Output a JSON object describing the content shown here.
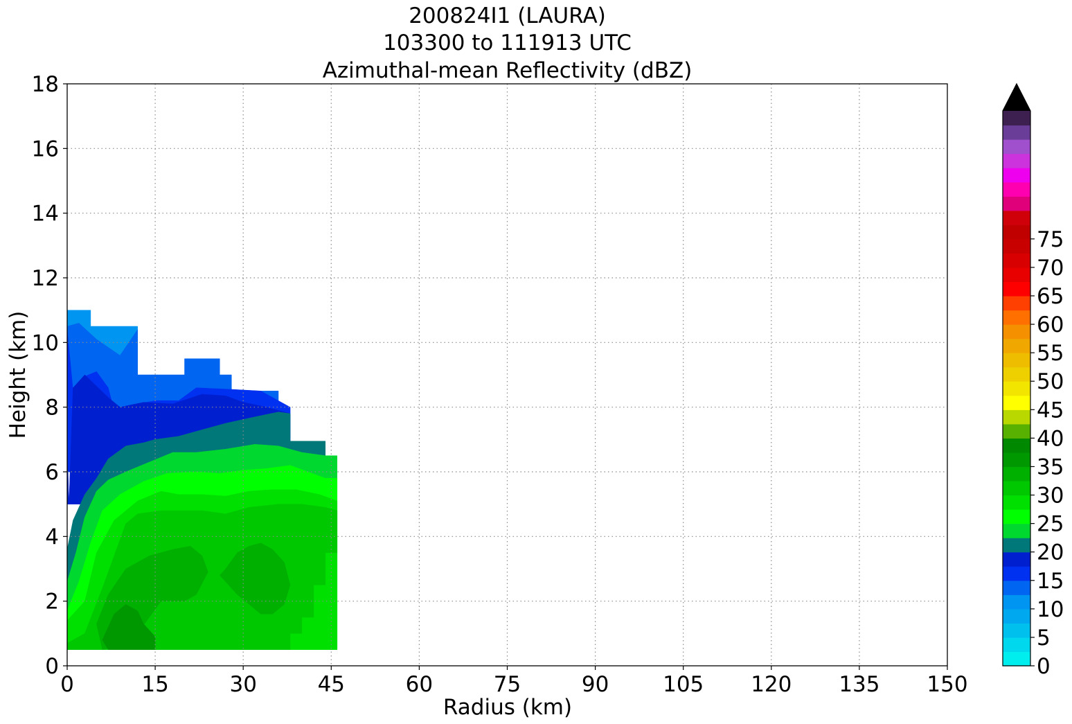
{
  "chart_data": {
    "type": "heatmap",
    "title": [
      "200824I1 (LAURA)",
      "103300 to 111913 UTC",
      "Azimuthal-mean Reflectivity (dBZ)"
    ],
    "xlabel": "Radius (km)",
    "ylabel": "Height (km)",
    "xlim": [
      0,
      150
    ],
    "ylim": [
      0,
      18
    ],
    "xticks": [
      0,
      15,
      30,
      45,
      60,
      75,
      90,
      105,
      120,
      135,
      150
    ],
    "yticks": [
      0,
      2,
      4,
      6,
      8,
      10,
      12,
      14,
      16,
      18
    ],
    "grid": true,
    "colorbar": {
      "ticks": [
        0,
        5,
        10,
        15,
        20,
        25,
        30,
        35,
        40,
        45,
        50,
        55,
        60,
        65,
        70,
        75
      ],
      "level_step": 2.5,
      "extend": "max",
      "colors": [
        "#00eeee",
        "#00d8ee",
        "#00c0ee",
        "#00a8f0",
        "#0095f0",
        "#0065f0",
        "#0030f0",
        "#0020d0",
        "#00787a",
        "#00d830",
        "#00ff00",
        "#00e000",
        "#00c800",
        "#00b000",
        "#009800",
        "#008800",
        "#58b000",
        "#b8d800",
        "#ffff00",
        "#f2e600",
        "#eed000",
        "#eebd00",
        "#f0a800",
        "#f59000",
        "#ff7000",
        "#ff4000",
        "#ff0000",
        "#e80000",
        "#d80000",
        "#c80000",
        "#c00000",
        "#d0000a",
        "#e0007a",
        "#ff00b0",
        "#ee00ee",
        "#cc33dd",
        "#a050cc",
        "#6a3e98",
        "#3e2050"
      ],
      "over_color": "#000000"
    },
    "regions": [
      {
        "level": "5 to 7.5",
        "color": "#0095f0",
        "r": [
          0,
          4,
          4,
          12,
          12,
          0
        ],
        "z": [
          11,
          11,
          10.5,
          10.5,
          9,
          9
        ]
      },
      {
        "level": "7.5 to 10",
        "color": "#0065f0",
        "r": [
          0,
          2,
          5,
          9,
          12,
          12,
          16,
          20,
          20,
          26,
          26,
          28,
          28,
          36,
          36,
          38,
          38,
          0
        ],
        "z": [
          10.5,
          10.6,
          10.1,
          9.6,
          10.4,
          9,
          9,
          9,
          9.5,
          9.5,
          9,
          9,
          8.5,
          8.5,
          8,
          8,
          6,
          6
        ]
      },
      {
        "level": "10 to 12.5",
        "color": "#0030f0",
        "r": [
          0,
          1,
          3,
          5,
          7,
          8,
          10,
          12,
          15,
          19,
          22,
          28,
          33,
          38,
          38,
          0
        ],
        "z": [
          10.4,
          8.5,
          8.95,
          9.1,
          8.6,
          7.9,
          7.8,
          8.1,
          8.2,
          8.2,
          8.6,
          8.55,
          8.5,
          8,
          6,
          6
        ]
      },
      {
        "level": "12.5 to 15",
        "color": "#0020d0",
        "r": [
          0,
          0.3,
          1,
          3,
          7,
          9,
          13,
          18,
          23,
          27,
          30,
          34,
          38,
          38,
          0
        ],
        "z": [
          7,
          5,
          8.6,
          9.0,
          8.3,
          8.0,
          8.15,
          8.1,
          8.4,
          8.35,
          8.15,
          8.0,
          7.8,
          5,
          5
        ]
      },
      {
        "level": "15 to 17.5",
        "color": "#00787a",
        "r": [
          0,
          1,
          3,
          5,
          7,
          10,
          13,
          15,
          19,
          23,
          27,
          32,
          36,
          38,
          38,
          44,
          44,
          0
        ],
        "z": [
          3.6,
          4.5,
          5.3,
          5.8,
          6.4,
          6.8,
          6.9,
          7.0,
          7.1,
          7.3,
          7.5,
          7.7,
          7.85,
          7.8,
          6.95,
          6.95,
          0.5,
          0.5
        ]
      },
      {
        "level": "17.5 to 20",
        "color": "#00d830",
        "r": [
          0,
          1.5,
          3,
          5,
          7,
          10,
          14,
          18,
          22,
          27,
          32,
          36,
          40,
          44,
          46,
          46,
          0
        ],
        "z": [
          2.6,
          3.5,
          4.6,
          5.4,
          5.75,
          6.0,
          6.3,
          6.6,
          6.6,
          6.7,
          6.85,
          6.8,
          6.6,
          6.5,
          6.5,
          0.5,
          0.5
        ]
      },
      {
        "level": "20 to 22.5",
        "color": "#00ff00",
        "r": [
          0,
          2,
          4,
          6,
          9,
          13,
          17,
          22,
          26,
          30,
          34,
          38,
          41,
          44,
          46,
          46,
          0
        ],
        "z": [
          1.7,
          2.6,
          3.8,
          4.8,
          5.3,
          5.7,
          5.95,
          6.0,
          5.95,
          6.05,
          6.1,
          6.2,
          6.0,
          5.8,
          5.8,
          0.5,
          0.5
        ]
      },
      {
        "level": "22.5 to 25",
        "color": "#00e000",
        "r": [
          0,
          3,
          5,
          8,
          12,
          16,
          19,
          23,
          27,
          31,
          35,
          39,
          43,
          46,
          46,
          0
        ],
        "z": [
          1.4,
          2.0,
          3.5,
          4.5,
          5.1,
          5.4,
          5.3,
          5.3,
          5.25,
          5.4,
          5.45,
          5.45,
          5.3,
          5.1,
          0.5,
          0.5
        ]
      },
      {
        "level": "25 to 27.5",
        "color": "#00c800",
        "r": [
          0,
          3,
          6,
          10,
          12,
          16,
          19,
          23,
          27,
          31,
          36,
          40,
          44,
          46,
          46,
          44,
          44,
          42,
          42,
          40,
          40,
          38,
          38,
          0
        ],
        "z": [
          0.7,
          1.0,
          2.4,
          4.4,
          4.7,
          4.8,
          4.8,
          4.8,
          4.7,
          4.9,
          5.0,
          5.0,
          4.9,
          4.8,
          3.5,
          3.5,
          2.5,
          2.5,
          1.5,
          1.5,
          1,
          1,
          0.5,
          0.5
        ]
      },
      {
        "level": "27.5 to 30",
        "color": "#00b000",
        "r": [
          5,
          7,
          10,
          14,
          18,
          21,
          23,
          24,
          22,
          20,
          16,
          14,
          12,
          9,
          6
        ],
        "z": [
          1.3,
          2.2,
          3.0,
          3.4,
          3.6,
          3.7,
          3.4,
          2.9,
          2.2,
          2.0,
          2.0,
          1.5,
          1.0,
          0.6,
          0.5
        ]
      },
      {
        "level": "27.5 to 30",
        "color": "#00b000",
        "r": [
          27,
          29,
          31,
          33,
          35,
          37,
          38,
          37,
          35,
          33,
          31,
          29,
          27,
          26
        ],
        "z": [
          3.0,
          3.5,
          3.7,
          3.8,
          3.6,
          3.2,
          2.5,
          1.9,
          1.6,
          1.6,
          1.9,
          2.2,
          2.6,
          2.8
        ]
      },
      {
        "level": "30 to 32.5",
        "color": "#009800",
        "r": [
          6,
          8,
          10,
          12,
          13,
          15,
          15,
          11,
          7
        ],
        "z": [
          0.8,
          1.6,
          1.9,
          1.7,
          1.3,
          0.9,
          0.5,
          0.5,
          0.5
        ]
      }
    ]
  }
}
